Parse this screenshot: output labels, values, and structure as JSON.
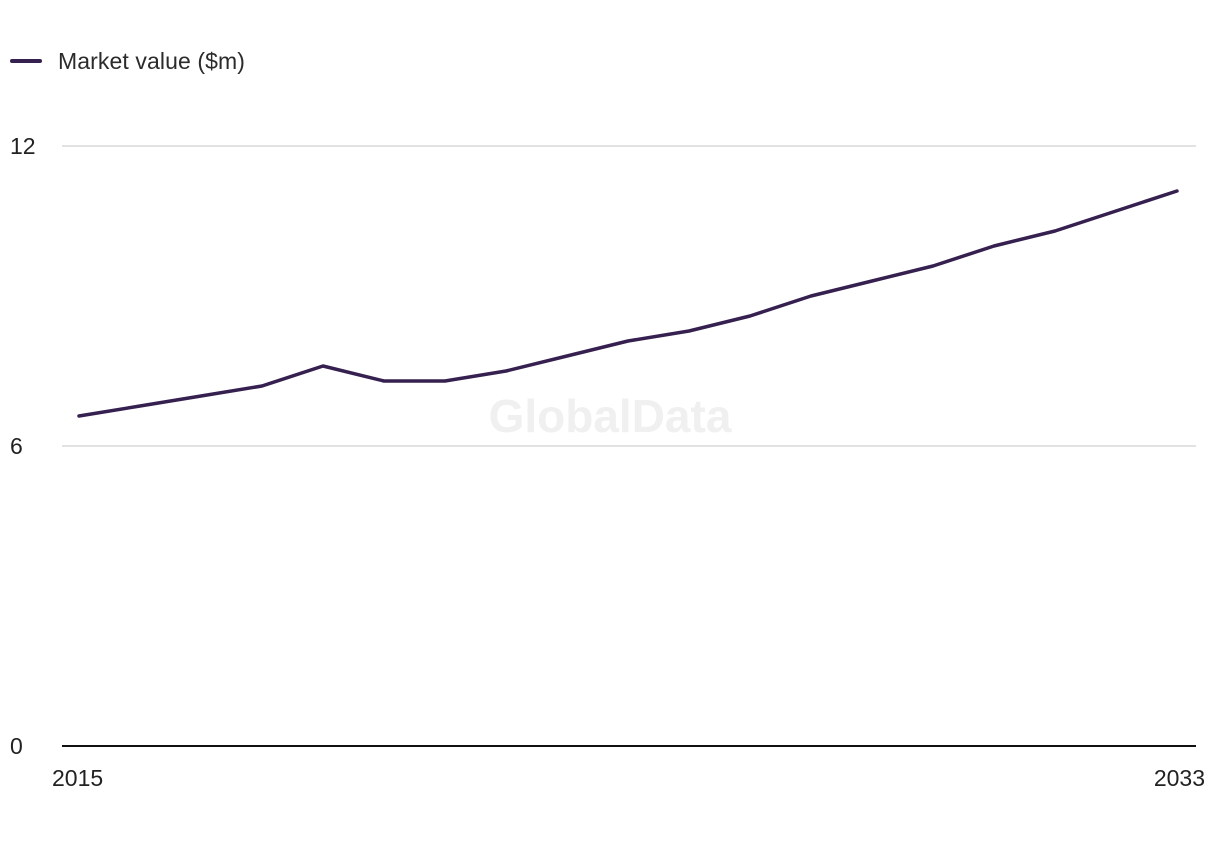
{
  "colors": {
    "series": "#35204f",
    "grid": "#d9d9d9",
    "axis": "#111111",
    "text": "#222222",
    "watermark": "#f0f0f0"
  },
  "watermark": "GlobalData",
  "chart_data": {
    "type": "line",
    "x": [
      2015,
      2016,
      2017,
      2018,
      2019,
      2020,
      2021,
      2022,
      2023,
      2024,
      2025,
      2026,
      2027,
      2028,
      2029,
      2030,
      2031,
      2032,
      2033
    ],
    "series": [
      {
        "name": "Market value ($m)",
        "values": [
          6.6,
          6.8,
          7.0,
          7.2,
          7.6,
          7.3,
          7.3,
          7.5,
          7.8,
          8.1,
          8.3,
          8.6,
          9.0,
          9.3,
          9.6,
          10.0,
          10.3,
          10.7,
          11.1
        ]
      }
    ],
    "ylim": [
      0,
      12
    ],
    "yticks": [
      0,
      6,
      12
    ],
    "xtick_labels": [
      "2015",
      "2033"
    ],
    "grid": true,
    "legend": "top-left",
    "xlabel": "",
    "ylabel": ""
  }
}
